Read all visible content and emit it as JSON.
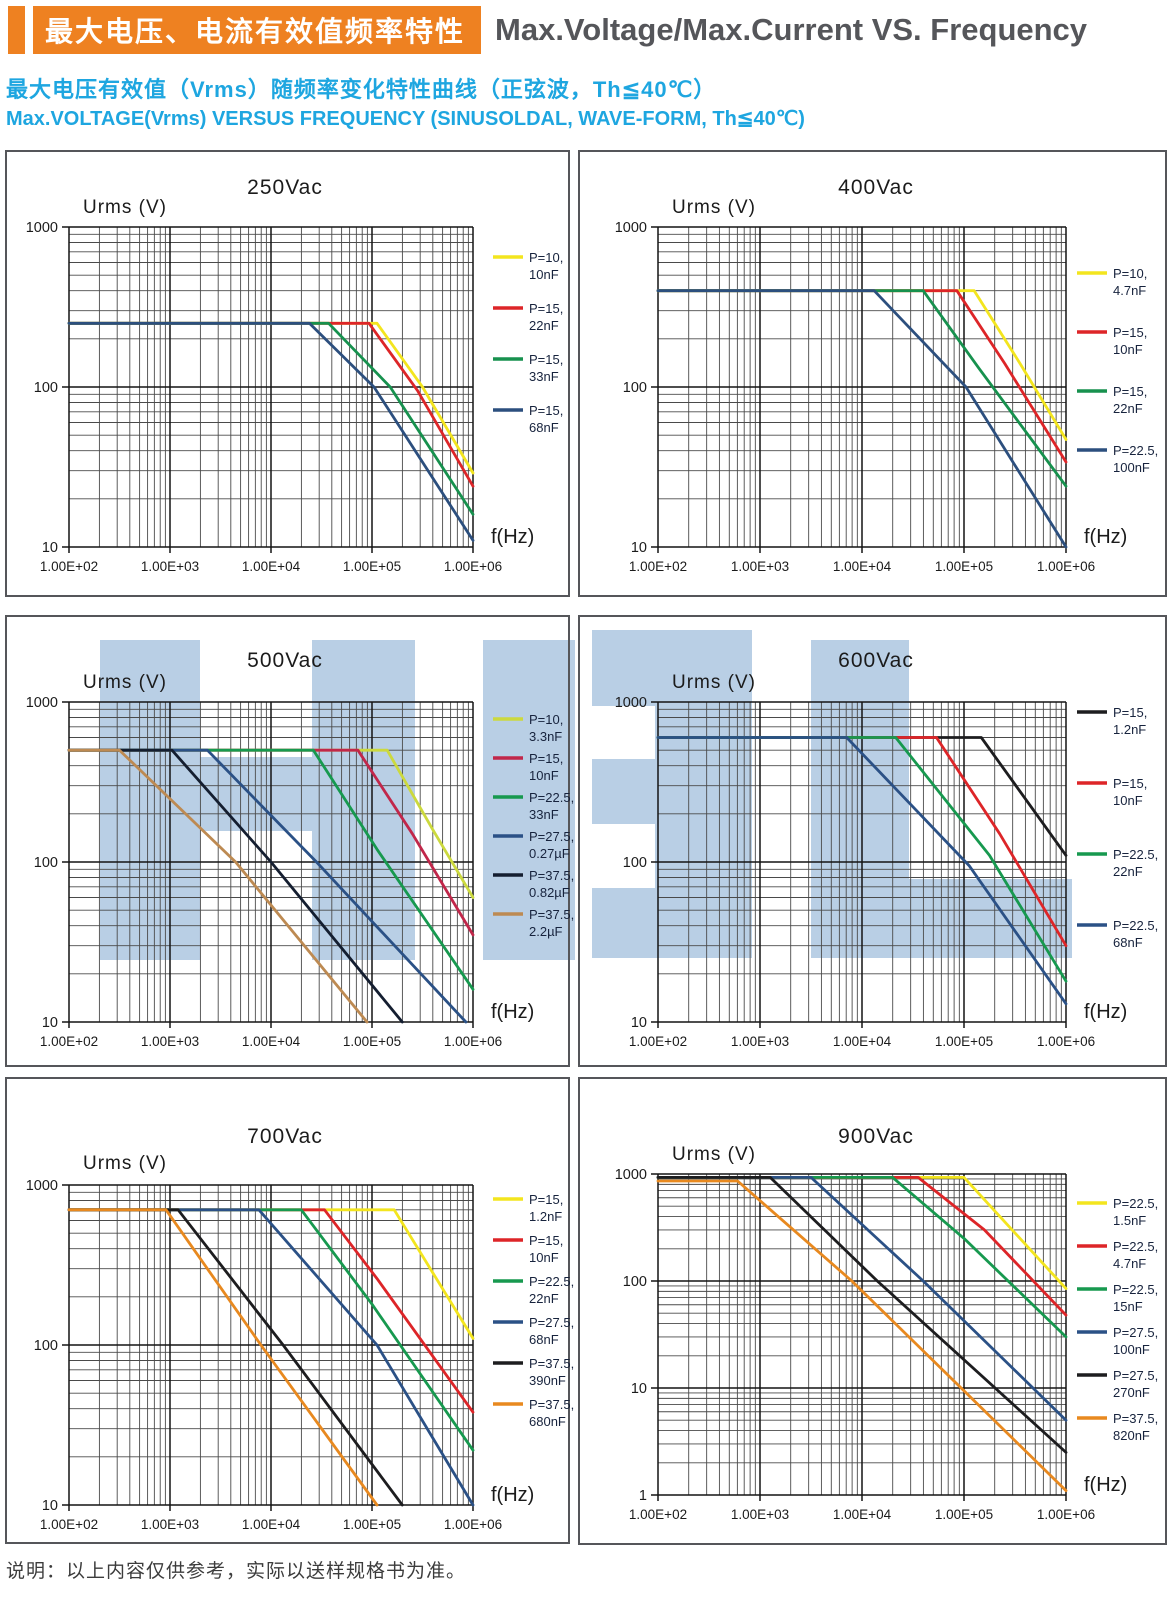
{
  "header": {
    "zh_title": "最大电压、电流有效值频率特性",
    "en_title": "Max.Voltage/Max.Current VS. Frequency",
    "subtitle_zh": "最大电压有效值（Vrms）随频率变化特性曲线（正弦波，Th≦40℃）",
    "subtitle_en": "Max.VOLTAGE(Vrms) VERSUS FREQUENCY (SINUSOLDAL, WAVE-FORM, Th≦40℃)"
  },
  "footer": {
    "note": "说明：以上内容仅供参考，实际以送样规格书为准。"
  },
  "colors": {
    "header_orange": "#ee8121",
    "title_gray": "#55565a",
    "subtitle_blue": "#1ea6e0",
    "watermark_blue": "#b9cfe5",
    "grid_minor": "#4a4a4a",
    "grid_major": "#141414",
    "axis_text": "#1b1b1b",
    "legend_text": "#17233d",
    "panel_border": "#55565a"
  },
  "watermark": {
    "rects": [
      [
        100,
        640,
        100,
        320
      ],
      [
        312,
        640,
        103,
        320
      ],
      [
        200,
        757,
        112,
        74
      ],
      [
        483,
        640,
        92,
        320
      ],
      [
        592,
        630,
        160,
        328
      ],
      [
        811,
        640,
        98,
        318
      ],
      [
        811,
        879,
        261,
        79
      ]
    ],
    "notches": [
      [
        592,
        706,
        63,
        53
      ],
      [
        592,
        824,
        63,
        64
      ]
    ]
  },
  "chart_data": [
    {
      "type": "line",
      "title": "250Vac",
      "ylabel": "Urms (V)",
      "xlabel": "f(Hz)",
      "x_ticks": [
        "1.00E+02",
        "1.00E+03",
        "1.00E+04",
        "1.00E+05",
        "1.00E+06"
      ],
      "y_ticks": [
        "1000",
        "100",
        "10"
      ],
      "xlim_log": [
        2,
        6
      ],
      "ylim_log": [
        1,
        3
      ],
      "grid": true,
      "legend_position": "right",
      "series": [
        {
          "label_lines": [
            "P=10,",
            "10nF"
          ],
          "color": "#f3e51e",
          "points_logf_v": [
            [
              2,
              250
            ],
            [
              5.05,
              250
            ],
            [
              5.5,
              100
            ],
            [
              6,
              29
            ]
          ]
        },
        {
          "label_lines": [
            "P=15,",
            "22nF"
          ],
          "color": "#dd2528",
          "points_logf_v": [
            [
              2,
              250
            ],
            [
              4.97,
              250
            ],
            [
              5.45,
              95
            ],
            [
              6,
              24
            ]
          ]
        },
        {
          "label_lines": [
            "P=15,",
            "33nF"
          ],
          "color": "#17914e",
          "points_logf_v": [
            [
              2,
              250
            ],
            [
              4.57,
              250
            ],
            [
              5.18,
              100
            ],
            [
              6,
              16
            ]
          ]
        },
        {
          "label_lines": [
            "P=15,",
            "68nF"
          ],
          "color": "#2c4f7e",
          "points_logf_v": [
            [
              2,
              250
            ],
            [
              4.38,
              250
            ],
            [
              5.02,
              100
            ],
            [
              6,
              11
            ]
          ]
        }
      ]
    },
    {
      "type": "line",
      "title": "400Vac",
      "ylabel": "Urms (V)",
      "xlabel": "f(Hz)",
      "x_ticks": [
        "1.00E+02",
        "1.00E+03",
        "1.00E+04",
        "1.00E+05",
        "1.00E+06"
      ],
      "y_ticks": [
        "1000",
        "100",
        "10"
      ],
      "xlim_log": [
        2,
        6
      ],
      "ylim_log": [
        1,
        3
      ],
      "grid": true,
      "legend_position": "right",
      "series": [
        {
          "label_lines": [
            "P=10,",
            "4.7nF"
          ],
          "color": "#f3e51e",
          "points_logf_v": [
            [
              2,
              400
            ],
            [
              5.1,
              400
            ],
            [
              5.55,
              140
            ],
            [
              6,
              47
            ]
          ]
        },
        {
          "label_lines": [
            "P=15,",
            "10nF"
          ],
          "color": "#dd2528",
          "points_logf_v": [
            [
              2,
              400
            ],
            [
              4.93,
              400
            ],
            [
              5.4,
              140
            ],
            [
              6,
              34
            ]
          ]
        },
        {
          "label_lines": [
            "P=15,",
            "22nF"
          ],
          "color": "#17914e",
          "points_logf_v": [
            [
              2,
              400
            ],
            [
              4.6,
              400
            ],
            [
              5.15,
              130
            ],
            [
              6,
              24
            ]
          ]
        },
        {
          "label_lines": [
            "P=22.5,",
            "100nF"
          ],
          "color": "#2c4f7e",
          "points_logf_v": [
            [
              2,
              400
            ],
            [
              4.12,
              400
            ],
            [
              5.02,
              100
            ],
            [
              6,
              10
            ]
          ]
        }
      ]
    },
    {
      "type": "line",
      "title": "500Vac",
      "ylabel": "Urms (V)",
      "xlabel": "f(Hz)",
      "x_ticks": [
        "1.00E+02",
        "1.00E+03",
        "1.00E+04",
        "1.00E+05",
        "1.00E+06"
      ],
      "y_ticks": [
        "1000",
        "100",
        "10"
      ],
      "xlim_log": [
        2,
        6
      ],
      "ylim_log": [
        1,
        3
      ],
      "grid": true,
      "legend_position": "right",
      "series": [
        {
          "label_lines": [
            "P=10,",
            "3.3nF"
          ],
          "color": "#ccd93e",
          "points_logf_v": [
            [
              2,
              500
            ],
            [
              5.15,
              500
            ],
            [
              5.6,
              160
            ],
            [
              6,
              60
            ]
          ]
        },
        {
          "label_lines": [
            "P=15,",
            "10nF"
          ],
          "color": "#c1274a",
          "points_logf_v": [
            [
              2,
              500
            ],
            [
              4.86,
              500
            ],
            [
              5.4,
              150
            ],
            [
              6,
              35
            ]
          ]
        },
        {
          "label_lines": [
            "P=22.5,",
            "33nF"
          ],
          "color": "#17994f",
          "points_logf_v": [
            [
              2,
              500
            ],
            [
              4.42,
              500
            ],
            [
              5.05,
              120
            ],
            [
              6,
              16
            ]
          ]
        },
        {
          "label_lines": [
            "P=27.5,",
            "0.27µF"
          ],
          "color": "#2b5186",
          "points_logf_v": [
            [
              2,
              500
            ],
            [
              3.37,
              500
            ],
            [
              4.45,
              100
            ],
            [
              5.93,
              10
            ]
          ]
        },
        {
          "label_lines": [
            "P=37.5,",
            "0.82µF"
          ],
          "color": "#141e30",
          "points_logf_v": [
            [
              2,
              500
            ],
            [
              3.02,
              500
            ],
            [
              4.0,
              100
            ],
            [
              5.3,
              10
            ]
          ]
        },
        {
          "label_lines": [
            "P=37.5,",
            "2.2µF"
          ],
          "color": "#bd8a52",
          "points_logf_v": [
            [
              2,
              500
            ],
            [
              2.5,
              500
            ],
            [
              3.65,
              100
            ],
            [
              4.95,
              10
            ]
          ]
        }
      ]
    },
    {
      "type": "line",
      "title": "600Vac",
      "ylabel": "Urms (V)",
      "xlabel": "f(Hz)",
      "x_ticks": [
        "1.00E+02",
        "1.00E+03",
        "1.00E+04",
        "1.00E+05",
        "1.00E+06"
      ],
      "y_ticks": [
        "1000",
        "100",
        "10"
      ],
      "xlim_log": [
        2,
        6
      ],
      "ylim_log": [
        1,
        3
      ],
      "grid": true,
      "legend_position": "right",
      "series": [
        {
          "label_lines": [
            "P=15,",
            "1.2nF"
          ],
          "color": "#1d1d1f",
          "points_logf_v": [
            [
              2,
              600
            ],
            [
              5.17,
              600
            ],
            [
              6,
              110
            ]
          ]
        },
        {
          "label_lines": [
            "P=15,",
            "10nF"
          ],
          "color": "#dd2528",
          "points_logf_v": [
            [
              2,
              600
            ],
            [
              4.73,
              600
            ],
            [
              5.35,
              150
            ],
            [
              6,
              30
            ]
          ]
        },
        {
          "label_lines": [
            "P=22.5,",
            "22nF"
          ],
          "color": "#17994f",
          "points_logf_v": [
            [
              2,
              600
            ],
            [
              4.33,
              600
            ],
            [
              5.25,
              110
            ],
            [
              6,
              18
            ]
          ]
        },
        {
          "label_lines": [
            "P=22.5,",
            "68nF"
          ],
          "color": "#2b5186",
          "points_logf_v": [
            [
              2,
              600
            ],
            [
              3.85,
              600
            ],
            [
              5.05,
              95
            ],
            [
              6,
              13
            ]
          ]
        }
      ]
    },
    {
      "type": "line",
      "title": "700Vac",
      "ylabel": "Urms (V)",
      "xlabel": "f(Hz)",
      "x_ticks": [
        "1.00E+02",
        "1.00E+03",
        "1.00E+04",
        "1.00E+05",
        "1.00E+06"
      ],
      "y_ticks": [
        "1000",
        "100",
        "10"
      ],
      "xlim_log": [
        2,
        6
      ],
      "ylim_log": [
        1,
        3
      ],
      "grid": true,
      "legend_position": "right",
      "series": [
        {
          "label_lines": [
            "P=15,",
            "1.2nF"
          ],
          "color": "#f3e51e",
          "points_logf_v": [
            [
              2,
              700
            ],
            [
              5.22,
              700
            ],
            [
              6,
              110
            ]
          ]
        },
        {
          "label_lines": [
            "P=15,",
            "10nF"
          ],
          "color": "#dd2528",
          "points_logf_v": [
            [
              2,
              700
            ],
            [
              4.53,
              700
            ],
            [
              5.05,
              260
            ],
            [
              6,
              38
            ]
          ]
        },
        {
          "label_lines": [
            "P=22.5,",
            "22nF"
          ],
          "color": "#17994f",
          "points_logf_v": [
            [
              2,
              700
            ],
            [
              4.3,
              700
            ],
            [
              5.0,
              180
            ],
            [
              6,
              22
            ]
          ]
        },
        {
          "label_lines": [
            "P=27.5,",
            "68nF"
          ],
          "color": "#2b5186",
          "points_logf_v": [
            [
              2,
              700
            ],
            [
              3.88,
              700
            ],
            [
              5.05,
              100
            ],
            [
              6,
              10
            ]
          ]
        },
        {
          "label_lines": [
            "P=37.5,",
            "390nF"
          ],
          "color": "#1d1d1f",
          "points_logf_v": [
            [
              2,
              700
            ],
            [
              3.08,
              700
            ],
            [
              4.12,
              100
            ],
            [
              5.3,
              10
            ]
          ]
        },
        {
          "label_lines": [
            "P=37.5,",
            "680nF"
          ],
          "color": "#e8891f",
          "points_logf_v": [
            [
              2,
              700
            ],
            [
              2.96,
              700
            ],
            [
              3.9,
              100
            ],
            [
              5.05,
              10
            ]
          ]
        }
      ]
    },
    {
      "type": "line",
      "title": "900Vac",
      "ylabel": "Urms (V)",
      "xlabel": "f(Hz)",
      "x_ticks": [
        "1.00E+02",
        "1.00E+03",
        "1.00E+04",
        "1.00E+05",
        "1.00E+06"
      ],
      "y_ticks": [
        "1000",
        "100",
        "10",
        "1"
      ],
      "xlim_log": [
        2,
        6
      ],
      "ylim_log": [
        0,
        3
      ],
      "grid": true,
      "legend_position": "right",
      "series": [
        {
          "label_lines": [
            "P=22.5,",
            "1.5nF"
          ],
          "color": "#f3e51e",
          "points_logf_v": [
            [
              2,
              930
            ],
            [
              5.0,
              930
            ],
            [
              6,
              85
            ]
          ]
        },
        {
          "label_lines": [
            "P=22.5,",
            "4.7nF"
          ],
          "color": "#dd2528",
          "points_logf_v": [
            [
              2,
              930
            ],
            [
              4.55,
              930
            ],
            [
              5.2,
              300
            ],
            [
              6,
              48
            ]
          ]
        },
        {
          "label_lines": [
            "P=22.5,",
            "15nF"
          ],
          "color": "#17994f",
          "points_logf_v": [
            [
              2,
              930
            ],
            [
              4.3,
              930
            ],
            [
              5.0,
              250
            ],
            [
              6,
              30
            ]
          ]
        },
        {
          "label_lines": [
            "P=27.5,",
            "100nF"
          ],
          "color": "#2b5186",
          "points_logf_v": [
            [
              2,
              930
            ],
            [
              3.5,
              930
            ],
            [
              4.6,
              100
            ],
            [
              6,
              5
            ]
          ]
        },
        {
          "label_lines": [
            "P=27.5,",
            "270nF"
          ],
          "color": "#1d1d1f",
          "points_logf_v": [
            [
              2,
              930
            ],
            [
              3.1,
              930
            ],
            [
              4.15,
              100
            ],
            [
              6,
              2.5
            ]
          ]
        },
        {
          "label_lines": [
            "P=37.5,",
            "820nF"
          ],
          "color": "#e8891f",
          "points_logf_v": [
            [
              2,
              860
            ],
            [
              2.78,
              860
            ],
            [
              3.9,
              100
            ],
            [
              6,
              1.1
            ]
          ]
        }
      ]
    }
  ]
}
